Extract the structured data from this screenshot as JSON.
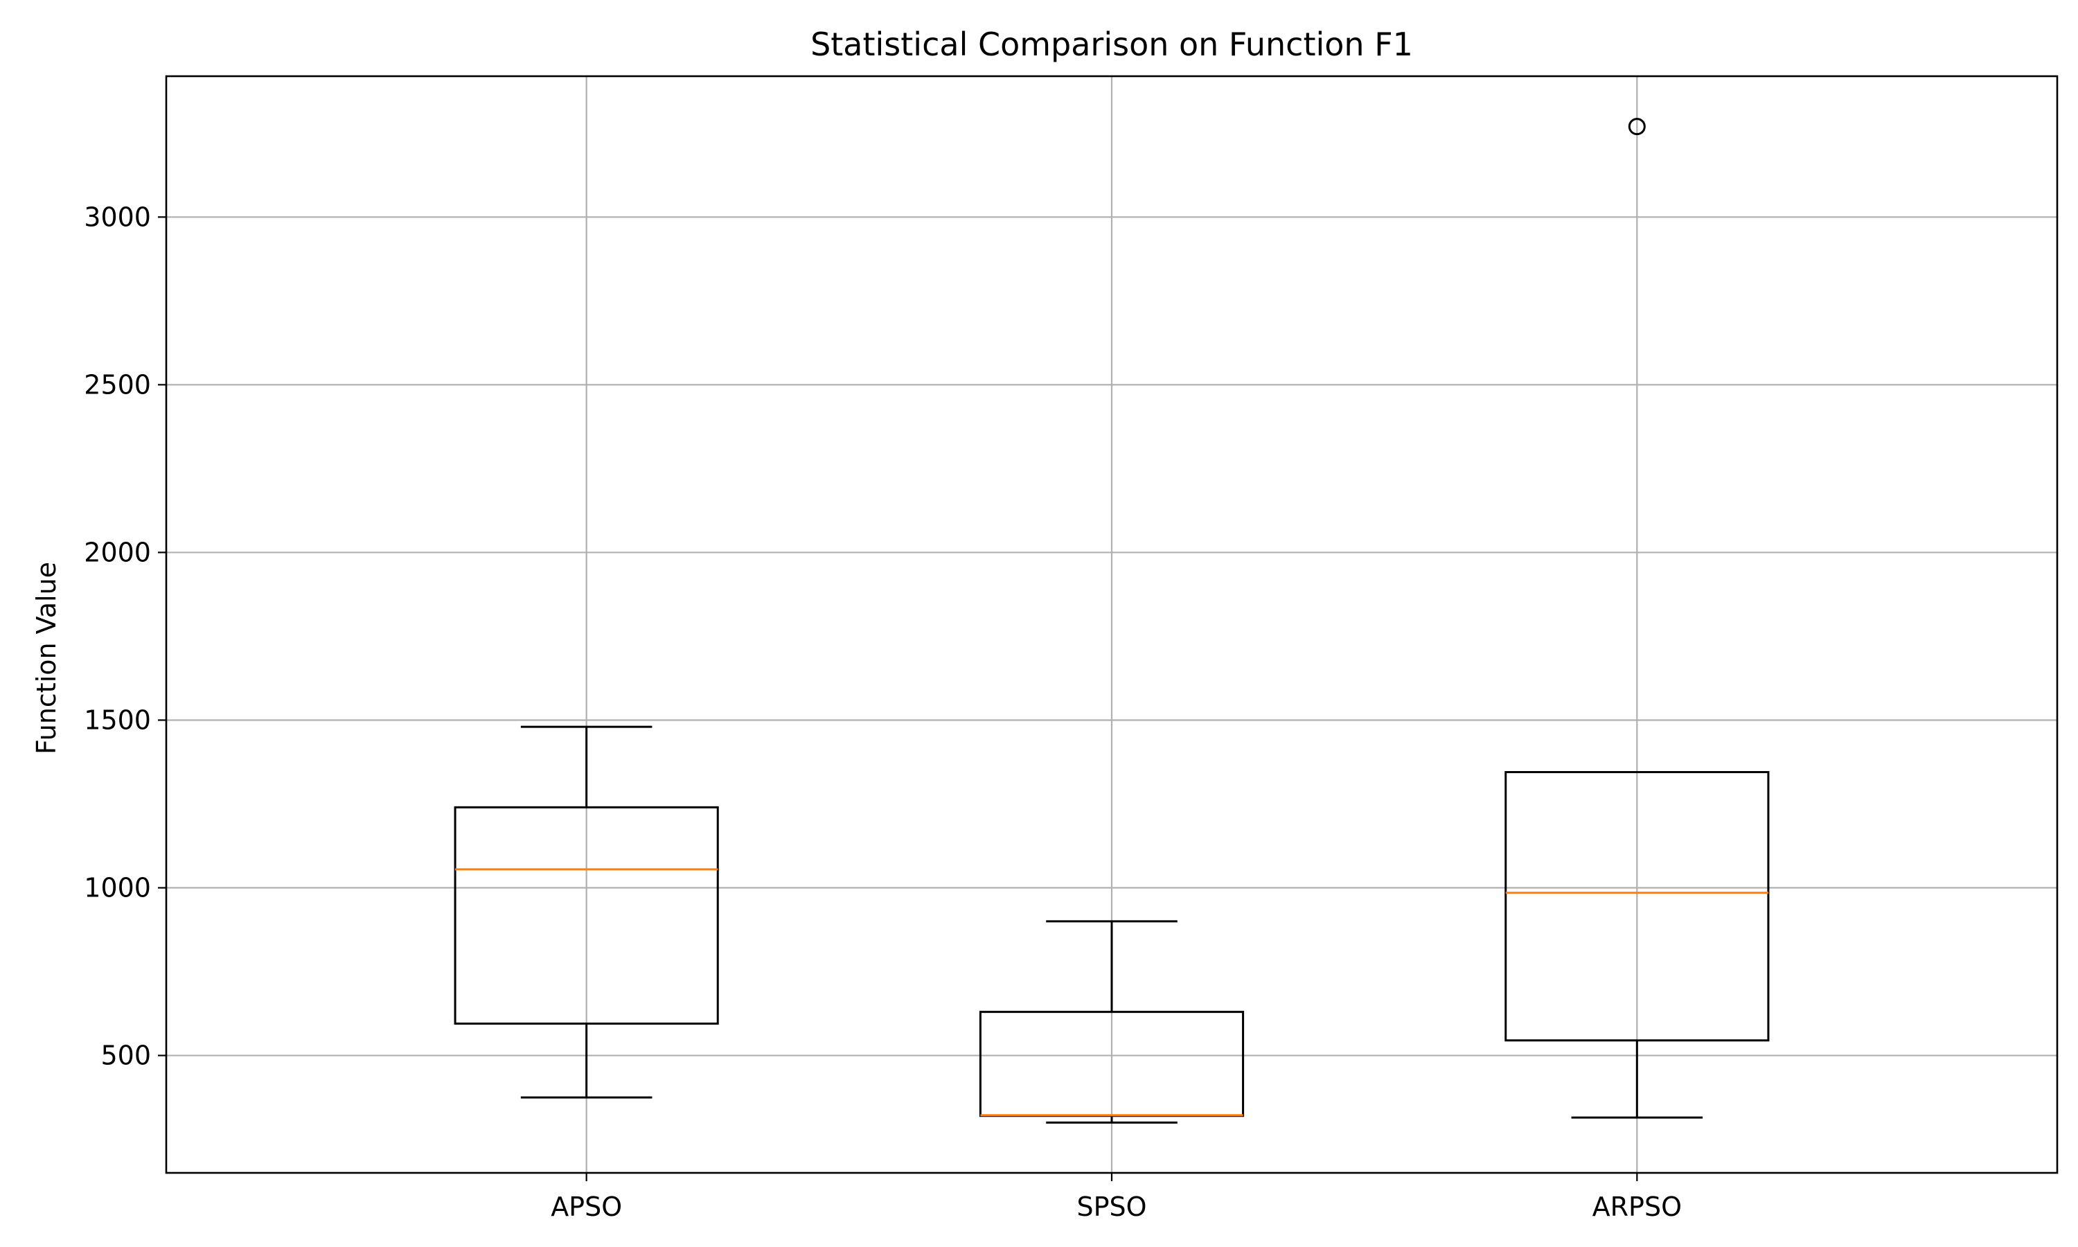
{
  "chart_data": {
    "type": "box",
    "title": "Statistical Comparison on Function F1",
    "xlabel": "",
    "ylabel": "Function Value",
    "ylim": [
      150,
      3420
    ],
    "yticks": [
      500,
      1000,
      1500,
      2000,
      2500,
      3000
    ],
    "ytick_labels": [
      "500",
      "1000",
      "1500",
      "2000",
      "2500",
      "3000"
    ],
    "grid": true,
    "categories": [
      "APSO",
      "SPSO",
      "ARPSO"
    ],
    "boxes": [
      {
        "name": "APSO",
        "whisker_low": 375,
        "q1": 595,
        "median": 1055,
        "q3": 1240,
        "whisker_high": 1480,
        "outliers": []
      },
      {
        "name": "SPSO",
        "whisker_low": 300,
        "q1": 320,
        "median": 322,
        "q3": 630,
        "whisker_high": 900,
        "outliers": []
      },
      {
        "name": "ARPSO",
        "whisker_low": 315,
        "q1": 545,
        "median": 985,
        "q3": 1345,
        "whisker_high": 1345,
        "outliers": [
          3270
        ]
      }
    ],
    "colors": {
      "box": "#000000",
      "median": "#ff7f0e",
      "grid": "#b0b0b0"
    }
  }
}
